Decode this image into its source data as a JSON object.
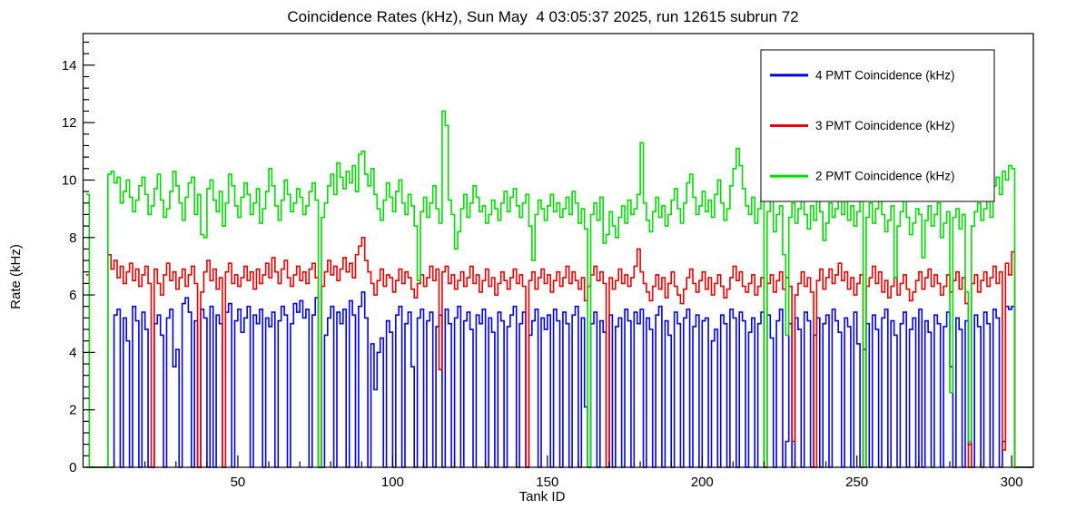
{
  "figure": {
    "background_color": "#ffffff",
    "frame_color": "#000000"
  },
  "chart_data": {
    "type": "line",
    "style": "step-histogram",
    "title": "Coincidence Rates (kHz), Sun May  4 03:05:37 2025, run 12615 subrun 72",
    "xlabel": "Tank ID",
    "ylabel": "Rate (kHz)",
    "xlim": [
      0,
      307
    ],
    "ylim": [
      0,
      15.1
    ],
    "xticks": [
      50,
      100,
      150,
      200,
      250,
      300
    ],
    "yticks": [
      0,
      2,
      4,
      6,
      8,
      10,
      12,
      14
    ],
    "x_minor_step": 10,
    "y_minor_step": 0.4,
    "x_start": 1,
    "bin_width": 1,
    "grid": false,
    "legend_position": "top-right",
    "series": [
      {
        "id": "4pmt",
        "name": "4 PMT Coincidence (kHz)",
        "color": "#0000ee",
        "values": [
          0,
          0,
          0,
          0,
          0,
          0,
          0,
          0,
          0,
          5.3,
          5.5,
          0,
          5.2,
          4.4,
          0,
          5.6,
          5.1,
          0,
          5.4,
          4.8,
          0,
          0,
          5.0,
          5.3,
          4.6,
          0,
          5.2,
          5.5,
          3.5,
          4.1,
          0,
          5.7,
          5.9,
          5.4,
          0,
          5.1,
          0,
          5.5,
          5.2,
          0,
          5.6,
          0,
          5.3,
          5.0,
          0,
          5.4,
          5.7,
          0,
          5.1,
          5.5,
          4.7,
          5.2,
          5.6,
          0,
          5.3,
          5.0,
          5.5,
          0,
          5.2,
          4.9,
          5.4,
          0,
          5.1,
          5.6,
          5.3,
          0,
          5.0,
          5.7,
          5.4,
          5.8,
          5.2,
          5.5,
          0,
          5.3,
          5.9,
          0,
          0,
          4.6,
          5.2,
          5.6,
          0,
          5.4,
          5.0,
          5.5,
          0,
          5.8,
          5.3,
          0,
          5.6,
          6.1,
          5.2,
          0,
          4.3,
          2.7,
          4.0,
          4.5,
          0,
          5.1,
          4.7,
          0,
          5.3,
          5.6,
          0,
          5.0,
          5.4,
          3.5,
          0,
          5.2,
          5.5,
          0,
          5.1,
          5.4,
          0,
          4.9,
          5.3,
          0,
          5.5,
          5.0,
          0,
          5.2,
          5.6,
          0,
          5.1,
          5.4,
          4.8,
          0,
          5.3,
          5.0,
          5.5,
          0,
          5.2,
          4.7,
          0,
          5.4,
          5.1,
          0,
          4.9,
          5.3,
          5.6,
          0,
          5.0,
          5.4,
          0,
          4.6,
          5.1,
          5.5,
          0,
          5.2,
          4.8,
          5.3,
          0,
          5.5,
          5.1,
          0,
          5.4,
          5.0,
          0,
          5.3,
          5.6,
          0,
          5.2,
          2.1,
          0,
          5.0,
          5.4,
          0,
          5.1,
          4.7,
          0,
          5.3,
          0,
          4.9,
          5.2,
          0,
          5.5,
          5.1,
          0,
          5.4,
          5.0,
          5.5,
          0,
          5.2,
          4.8,
          0,
          5.3,
          5.6,
          0,
          5.1,
          4.6,
          0,
          5.4,
          5.0,
          0,
          5.2,
          5.5,
          0,
          4.9,
          5.3,
          0,
          5.1,
          5.2,
          0,
          4.4,
          4.8,
          0,
          5.3,
          5.0,
          0,
          5.5,
          5.2,
          0,
          5.4,
          5.1,
          0,
          4.7,
          5.2,
          0,
          5.0,
          5.4,
          0,
          5.3,
          4.5,
          0,
          5.1,
          5.5,
          0,
          0.9,
          5.0,
          0,
          5.2,
          4.8,
          0,
          5.4,
          5.1,
          0,
          4.6,
          5.2,
          0,
          5.0,
          5.3,
          0,
          5.5,
          5.1,
          4.7,
          0,
          5.2,
          4.9,
          0,
          5.4,
          4.3,
          0,
          4.1,
          5.0,
          0,
          5.3,
          4.8,
          0,
          5.2,
          5.5,
          0,
          5.1,
          4.6,
          0,
          5.0,
          5.4,
          0,
          4.8,
          5.2,
          0,
          5.5,
          0,
          5.1,
          4.7,
          0,
          5.3,
          5.0,
          0,
          4.9,
          5.4,
          3.5,
          0,
          5.2,
          4.8,
          0,
          5.1,
          0.8,
          0,
          5.3,
          4.9,
          0,
          5.4,
          5.0,
          0,
          5.5,
          5.2,
          0,
          0.9,
          5.6,
          5.5,
          5.6
        ]
      },
      {
        "id": "3pmt",
        "name": "3 PMT Coincidence (kHz)",
        "color": "#ee0000",
        "values": [
          6.7,
          0,
          0,
          0,
          0,
          0,
          0,
          7.4,
          6.9,
          7.2,
          6.6,
          7.0,
          6.4,
          6.8,
          7.1,
          6.5,
          6.9,
          6.3,
          6.7,
          7.0,
          6.4,
          0,
          6.9,
          6.4,
          6.0,
          6.7,
          7.1,
          6.5,
          6.8,
          6.2,
          6.6,
          6.9,
          6.3,
          6.7,
          7.0,
          6.4,
          0,
          6.1,
          6.8,
          7.2,
          6.5,
          6.9,
          6.2,
          6.6,
          0,
          6.8,
          7.1,
          6.4,
          6.7,
          6.3,
          6.6,
          7.0,
          6.5,
          6.8,
          6.2,
          6.9,
          6.4,
          6.7,
          7.1,
          6.6,
          7.3,
          6.8,
          6.4,
          6.9,
          7.2,
          6.6,
          6.3,
          6.7,
          7.0,
          6.5,
          6.8,
          6.4,
          6.9,
          7.1,
          6.6,
          0,
          6.3,
          6.8,
          7.2,
          6.7,
          7.0,
          6.5,
          6.9,
          7.3,
          6.8,
          7.1,
          6.6,
          7.4,
          7.7,
          8.0,
          7.2,
          6.8,
          6.4,
          6.0,
          6.5,
          6.9,
          6.3,
          6.7,
          6.6,
          6.1,
          6.5,
          6.9,
          6.4,
          6.8,
          6.6,
          6.2,
          5.9,
          6.4,
          6.7,
          6.3,
          6.6,
          7.0,
          6.5,
          6.9,
          3.4,
          6.8,
          7.0,
          6.4,
          6.7,
          6.2,
          6.5,
          6.8,
          6.3,
          6.6,
          7.0,
          6.4,
          6.7,
          6.1,
          6.5,
          6.9,
          6.3,
          6.6,
          6.0,
          6.4,
          6.8,
          6.5,
          6.2,
          6.6,
          6.9,
          6.4,
          6.7,
          6.3,
          0,
          6.5,
          6.8,
          6.2,
          6.6,
          6.9,
          6.4,
          6.7,
          6.1,
          6.5,
          6.8,
          6.3,
          6.6,
          7.0,
          6.4,
          6.8,
          6.5,
          6.2,
          6.6,
          5.8,
          6.3,
          6.7,
          7.0,
          6.5,
          6.8,
          6.4,
          0,
          6.6,
          6.2,
          6.5,
          6.9,
          6.4,
          6.7,
          6.3,
          6.6,
          7.0,
          7.6,
          6.8,
          6.4,
          6.1,
          5.8,
          6.3,
          6.7,
          6.2,
          6.6,
          5.9,
          6.4,
          6.8,
          6.3,
          6.0,
          5.7,
          6.2,
          6.6,
          6.9,
          6.4,
          6.1,
          6.5,
          6.8,
          6.2,
          6.6,
          6.0,
          6.4,
          6.7,
          6.3,
          5.9,
          6.2,
          6.6,
          7.0,
          6.5,
          6.8,
          6.3,
          6.1,
          6.4,
          6.7,
          6.0,
          6.3,
          6.6,
          0,
          6.4,
          6.7,
          6.1,
          6.5,
          6.8,
          6.2,
          6.6,
          6.3,
          0.9,
          6.0,
          6.4,
          6.8,
          6.3,
          6.6,
          6.1,
          0,
          6.5,
          6.9,
          6.2,
          6.6,
          6.9,
          6.4,
          6.7,
          7.1,
          6.5,
          6.8,
          6.2,
          6.6,
          6.0,
          6.4,
          6.7,
          0,
          6.3,
          6.6,
          7.0,
          6.4,
          6.8,
          6.1,
          6.5,
          5.9,
          6.3,
          6.6,
          6.0,
          6.4,
          6.7,
          6.2,
          5.8,
          6.1,
          6.5,
          6.8,
          6.2,
          6.6,
          6.9,
          6.3,
          6.7,
          6.4,
          6.0,
          6.3,
          6.7,
          6.1,
          6.5,
          6.8,
          6.2,
          6.6,
          5.7,
          0,
          6.4,
          6.7,
          6.1,
          6.5,
          6.8,
          6.3,
          6.6,
          7.0,
          6.4,
          6.8,
          0.6,
          7.1,
          6.7,
          7.5
        ]
      },
      {
        "id": "2pmt",
        "name": "2 PMT Coincidence (kHz)",
        "color": "#00dd00",
        "values": [
          9.5,
          0,
          0,
          0,
          0,
          0,
          0,
          10.2,
          10.3,
          9.9,
          10.1,
          9.2,
          9.6,
          10.0,
          9.4,
          8.9,
          9.3,
          9.8,
          10.1,
          9.5,
          8.8,
          9.1,
          9.7,
          10.2,
          9.3,
          8.7,
          9.0,
          9.6,
          10.3,
          9.8,
          9.2,
          8.6,
          9.4,
          9.9,
          10.1,
          8.8,
          9.5,
          8.1,
          8.0,
          9.7,
          10.0,
          9.3,
          8.9,
          9.6,
          8.4,
          9.2,
          10.2,
          9.8,
          9.1,
          8.7,
          9.4,
          9.9,
          9.5,
          8.8,
          9.2,
          9.7,
          8.5,
          9.0,
          9.6,
          10.4,
          9.8,
          9.1,
          8.6,
          9.3,
          10.0,
          9.5,
          8.9,
          9.2,
          9.7,
          9.4,
          8.8,
          9.1,
          9.6,
          9.9,
          9.3,
          0,
          8.7,
          9.2,
          9.8,
          10.2,
          9.5,
          10.6,
          10.1,
          9.7,
          10.3,
          9.9,
          10.5,
          9.6,
          10.9,
          11.0,
          10.2,
          9.8,
          10.4,
          9.5,
          9.0,
          8.6,
          9.3,
          9.9,
          9.4,
          8.9,
          9.6,
          10.0,
          9.2,
          8.8,
          9.5,
          9.1,
          8.4,
          6.5,
          8.9,
          9.4,
          8.7,
          9.2,
          9.8,
          9.0,
          8.5,
          12.4,
          11.9,
          9.3,
          8.8,
          7.6,
          8.2,
          9.0,
          9.5,
          8.7,
          9.2,
          9.8,
          9.4,
          8.9,
          9.1,
          8.5,
          8.8,
          9.3,
          9.0,
          8.6,
          9.2,
          9.6,
          8.9,
          9.4,
          9.7,
          9.1,
          8.7,
          9.2,
          9.5,
          8.4,
          7.2,
          8.8,
          9.3,
          9.0,
          8.6,
          9.1,
          9.5,
          8.9,
          9.2,
          8.7,
          9.0,
          9.4,
          8.8,
          9.6,
          9.2,
          8.5,
          9.0,
          8.3,
          0,
          8.8,
          9.2,
          8.6,
          9.4,
          7.8,
          8.1,
          8.9,
          8.4,
          8.0,
          8.7,
          9.1,
          8.5,
          9.3,
          8.8,
          9.0,
          9.5,
          11.3,
          9.2,
          8.6,
          8.2,
          8.9,
          9.4,
          8.7,
          9.1,
          8.4,
          8.8,
          9.3,
          9.7,
          9.0,
          8.5,
          9.2,
          9.9,
          10.2,
          9.4,
          8.8,
          9.1,
          9.6,
          8.9,
          9.3,
          8.7,
          9.5,
          10.0,
          9.2,
          8.6,
          9.0,
          9.8,
          10.4,
          11.1,
          10.5,
          9.7,
          9.1,
          8.8,
          9.4,
          8.5,
          9.0,
          9.3,
          0,
          8.9,
          9.5,
          8.2,
          8.8,
          9.1,
          7.4,
          4.6,
          8.7,
          9.2,
          8.5,
          9.0,
          9.4,
          8.8,
          8.3,
          9.1,
          8.6,
          9.3,
          8.9,
          7.9,
          8.5,
          9.2,
          8.7,
          9.0,
          9.5,
          8.8,
          9.3,
          8.6,
          9.1,
          8.4,
          8.9,
          9.4,
          0,
          8.7,
          9.2,
          8.5,
          9.0,
          9.6,
          8.8,
          8.2,
          8.6,
          9.1,
          6.6,
          8.4,
          8.9,
          9.3,
          8.7,
          8.1,
          8.5,
          9.0,
          8.8,
          7.3,
          8.6,
          9.1,
          8.4,
          8.8,
          9.2,
          8.0,
          8.5,
          8.9,
          2.6,
          8.7,
          9.0,
          8.3,
          8.8,
          6.1,
          0.9,
          8.4,
          8.9,
          9.2,
          8.6,
          9.0,
          9.4,
          8.7,
          9.8,
          10.1,
          9.5,
          10.3,
          10.0,
          10.5,
          10.4
        ]
      }
    ]
  }
}
